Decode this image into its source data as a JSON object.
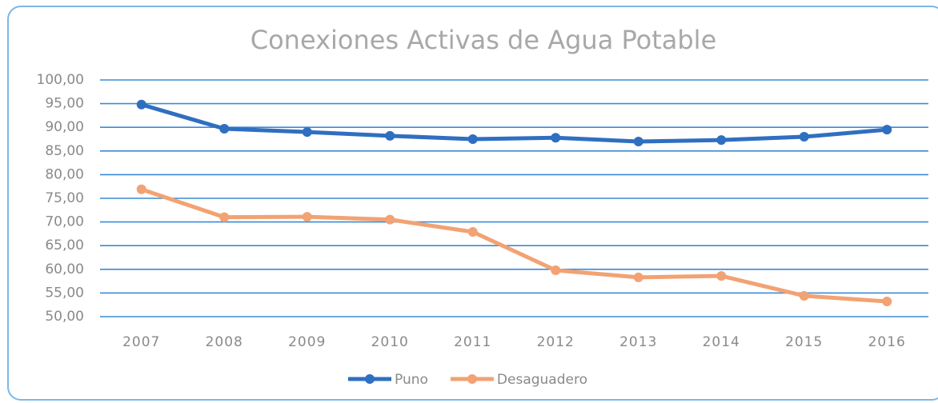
{
  "chart_data": {
    "type": "line",
    "title": "Conexiones Activas de Agua Potable",
    "categories": [
      "2007",
      "2008",
      "2009",
      "2010",
      "2011",
      "2012",
      "2013",
      "2014",
      "2015",
      "2016"
    ],
    "series": [
      {
        "name": "Puno",
        "color": "#2f6fc0",
        "values": [
          94.8,
          89.7,
          89.0,
          88.2,
          87.5,
          87.8,
          87.0,
          87.3,
          88.0,
          89.5
        ]
      },
      {
        "name": "Desaguadero",
        "color": "#f2a273",
        "values": [
          76.9,
          71.0,
          71.1,
          70.5,
          67.9,
          59.8,
          58.3,
          58.6,
          54.4,
          53.2
        ]
      }
    ],
    "ylim": [
      50,
      100
    ],
    "yticks": [
      {
        "value": 50,
        "label": "50,00"
      },
      {
        "value": 55,
        "label": "55,00"
      },
      {
        "value": 60,
        "label": "60,00"
      },
      {
        "value": 65,
        "label": "65,00"
      },
      {
        "value": 70,
        "label": "70,00"
      },
      {
        "value": 75,
        "label": "75,00"
      },
      {
        "value": 80,
        "label": "80,00"
      },
      {
        "value": 85,
        "label": "85,00"
      },
      {
        "value": 90,
        "label": "90,00"
      },
      {
        "value": 95,
        "label": "95,00"
      },
      {
        "value": 100,
        "label": "100,00"
      }
    ],
    "grid": true,
    "legend": "bottom"
  }
}
